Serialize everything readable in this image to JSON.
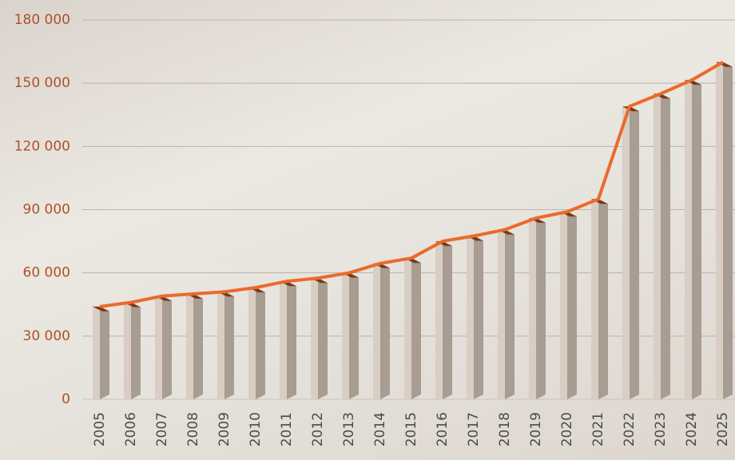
{
  "chart_data": {
    "type": "line",
    "categories": [
      "2005",
      "2006",
      "2007",
      "2008",
      "2009",
      "2010",
      "2011",
      "2012",
      "2013",
      "2014",
      "2015",
      "2016",
      "2017",
      "2018",
      "2019",
      "2020",
      "2021",
      "2022",
      "2023",
      "2024",
      "2025"
    ],
    "values": [
      44000,
      46000,
      49000,
      50000,
      51000,
      53000,
      56000,
      57500,
      60000,
      64500,
      67000,
      75000,
      77500,
      80500,
      86000,
      89000,
      95000,
      139000,
      145000,
      151500,
      160000
    ],
    "color": "#ea6a2c",
    "bar_color": "#d8cec3",
    "ylim": [
      0,
      180000
    ],
    "yticks": [
      0,
      {
        "value": 30000,
        "label": "30 000"
      },
      {
        "value": 60000,
        "label": "60 000"
      },
      {
        "value": 90000,
        "label": "90 000"
      },
      {
        "value": 120000,
        "label": "120 000"
      },
      {
        "value": 150000,
        "label": "150 000"
      },
      {
        "value": 180000,
        "label": "180 000"
      }
    ],
    "grid": true
  }
}
